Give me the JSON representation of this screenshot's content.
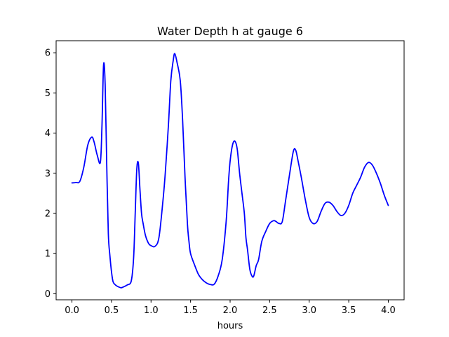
{
  "chart_data": {
    "type": "line",
    "title": "Water Depth h at gauge 6",
    "xlabel": "hours",
    "ylabel": "",
    "xlim": [
      -0.2,
      4.2
    ],
    "ylim": [
      -0.15,
      6.3
    ],
    "xticks": [
      0.0,
      0.5,
      1.0,
      1.5,
      2.0,
      2.5,
      3.0,
      3.5,
      4.0
    ],
    "xtick_labels": [
      "0.0",
      "0.5",
      "1.0",
      "1.5",
      "2.0",
      "2.5",
      "3.0",
      "3.5",
      "4.0"
    ],
    "yticks": [
      0,
      1,
      2,
      3,
      4,
      5,
      6
    ],
    "ytick_labels": [
      "0",
      "1",
      "2",
      "3",
      "4",
      "5",
      "6"
    ],
    "grid": false,
    "legend": "none",
    "series": [
      {
        "color": "#0000ff",
        "x": [
          0.0,
          0.05,
          0.1,
          0.15,
          0.2,
          0.25,
          0.28,
          0.32,
          0.36,
          0.38,
          0.4,
          0.42,
          0.44,
          0.46,
          0.48,
          0.5,
          0.52,
          0.55,
          0.58,
          0.62,
          0.65,
          0.7,
          0.75,
          0.78,
          0.8,
          0.82,
          0.84,
          0.86,
          0.88,
          0.9,
          0.93,
          0.97,
          1.0,
          1.05,
          1.1,
          1.15,
          1.18,
          1.22,
          1.25,
          1.28,
          1.3,
          1.33,
          1.37,
          1.4,
          1.43,
          1.46,
          1.48,
          1.5,
          1.55,
          1.6,
          1.65,
          1.7,
          1.75,
          1.8,
          1.85,
          1.9,
          1.95,
          1.98,
          2.0,
          2.03,
          2.06,
          2.09,
          2.12,
          2.15,
          2.18,
          2.2,
          2.22,
          2.25,
          2.28,
          2.3,
          2.33,
          2.36,
          2.4,
          2.45,
          2.5,
          2.55,
          2.58,
          2.62,
          2.66,
          2.7,
          2.75,
          2.8,
          2.83,
          2.86,
          2.9,
          2.95,
          3.0,
          3.05,
          3.1,
          3.15,
          3.2,
          3.25,
          3.3,
          3.35,
          3.4,
          3.45,
          3.5,
          3.55,
          3.6,
          3.65,
          3.7,
          3.75,
          3.8,
          3.85,
          3.9,
          3.95,
          4.0
        ],
        "y": [
          2.76,
          2.77,
          2.8,
          3.15,
          3.7,
          3.9,
          3.78,
          3.45,
          3.28,
          4.2,
          5.7,
          5.2,
          3.2,
          1.5,
          0.95,
          0.55,
          0.3,
          0.22,
          0.18,
          0.15,
          0.17,
          0.22,
          0.32,
          0.9,
          2.0,
          3.1,
          3.25,
          2.6,
          2.0,
          1.75,
          1.45,
          1.25,
          1.2,
          1.18,
          1.4,
          2.3,
          3.0,
          4.2,
          5.3,
          5.8,
          5.98,
          5.75,
          5.3,
          4.3,
          2.9,
          1.75,
          1.3,
          1.0,
          0.72,
          0.48,
          0.35,
          0.27,
          0.23,
          0.24,
          0.45,
          0.85,
          1.8,
          2.8,
          3.3,
          3.7,
          3.8,
          3.6,
          3.0,
          2.5,
          2.0,
          1.4,
          1.1,
          0.6,
          0.43,
          0.45,
          0.7,
          0.85,
          1.3,
          1.55,
          1.75,
          1.82,
          1.8,
          1.75,
          1.8,
          2.3,
          2.95,
          3.55,
          3.57,
          3.3,
          2.9,
          2.35,
          1.9,
          1.75,
          1.8,
          2.05,
          2.25,
          2.28,
          2.2,
          2.05,
          1.95,
          2.0,
          2.2,
          2.5,
          2.7,
          2.9,
          3.15,
          3.27,
          3.2,
          3.0,
          2.75,
          2.45,
          2.2
        ]
      }
    ]
  }
}
